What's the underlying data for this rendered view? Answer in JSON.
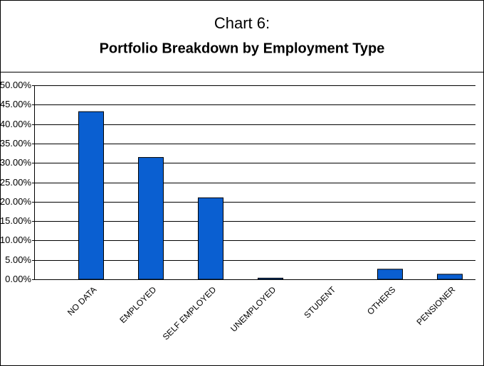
{
  "chart_data": {
    "type": "bar",
    "title": "Chart 6:",
    "subtitle": "Portfolio Breakdown by Employment Type",
    "categories": [
      "NO DATA",
      "EMPLOYED",
      "SELF EMPLOYED",
      "UNEMPLOYED",
      "STUDENT",
      "OTHERS",
      "PENSIONER"
    ],
    "values": [
      43.2,
      31.4,
      21.0,
      0.3,
      0.0,
      2.6,
      1.3
    ],
    "color": "#0a5fd1",
    "ylim": [
      0,
      50
    ],
    "yticks": [
      {
        "value": 0,
        "label": "0.00%"
      },
      {
        "value": 5,
        "label": "5.00%"
      },
      {
        "value": 10,
        "label": "10.00%"
      },
      {
        "value": 15,
        "label": "15.00%"
      },
      {
        "value": 20,
        "label": "20.00%"
      },
      {
        "value": 25,
        "label": "25.00%"
      },
      {
        "value": 30,
        "label": "30.00%"
      },
      {
        "value": 35,
        "label": "35.00%"
      },
      {
        "value": 40,
        "label": "40.00%"
      },
      {
        "value": 45,
        "label": "45.00%"
      },
      {
        "value": 50,
        "label": "50.00%"
      }
    ],
    "grid": true
  }
}
